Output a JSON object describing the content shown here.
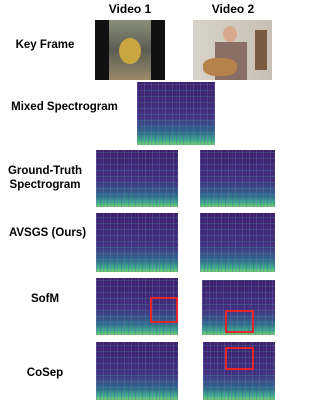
{
  "header": {
    "columns": [
      "Video 1",
      "Video 2"
    ]
  },
  "rows": [
    "Key Frame",
    "Mixed Spectrogram",
    "Ground-Truth Spectrogram",
    "AVSGS (Ours)",
    "SofM",
    "CoSep"
  ]
}
